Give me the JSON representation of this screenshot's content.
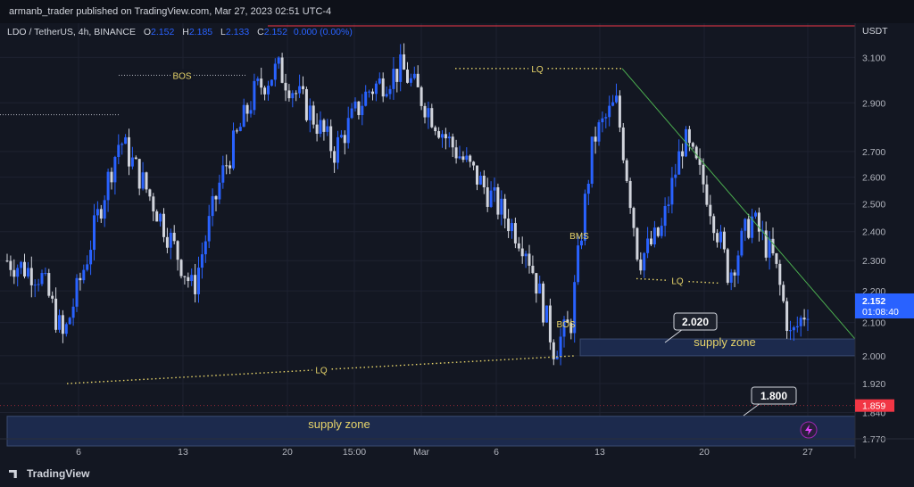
{
  "publisher_line": "armanb_trader published on TradingView.com, Mar 27, 2023 02:51 UTC-4",
  "legend": {
    "symbol": "LDO / TetherUS, 4h, BINANCE",
    "o_label": "O",
    "o": "2.152",
    "h_label": "H",
    "h": "2.185",
    "l_label": "L",
    "l": "2.133",
    "c_label": "C",
    "c": "2.152",
    "change": "0.000 (0.00%)"
  },
  "brand": "TradingView",
  "colors": {
    "up": "#2962ff",
    "down": "#d1d4dc",
    "background": "#131722",
    "zone": "#1c2a4d",
    "annotation": "#e8d56a",
    "trendline": "#4caf50",
    "price_badge": "#2962ff",
    "red_badge": "#f23645"
  },
  "chart_data": {
    "type": "candlestick",
    "currency_label": "USDT",
    "x_tick_labels": [
      "6",
      "13",
      "20",
      "15:00",
      "Mar",
      "6",
      "13",
      "20",
      "27"
    ],
    "y_tick_labels": [
      "3.100",
      "2.900",
      "2.700",
      "2.600",
      "2.500",
      "2.400",
      "2.300",
      "2.200",
      "2.100",
      "2.000",
      "1.920",
      "1.840",
      "1.770"
    ],
    "y_scale": "log",
    "ylim": [
      1.72,
      3.26
    ],
    "grid": true,
    "last_price": "2.152",
    "countdown": "01:08:40",
    "marker_price": "1.859",
    "close_path": [
      {
        "t": 0,
        "p": 2.3
      },
      {
        "t": 6,
        "p": 2.25
      },
      {
        "t": 10,
        "p": 2.05
      },
      {
        "t": 14,
        "p": 2.3
      },
      {
        "t": 20,
        "p": 2.75
      },
      {
        "t": 26,
        "p": 2.5
      },
      {
        "t": 33,
        "p": 2.2
      },
      {
        "t": 38,
        "p": 2.6
      },
      {
        "t": 44,
        "p": 2.95
      },
      {
        "t": 48,
        "p": 3.05
      },
      {
        "t": 54,
        "p": 2.85
      },
      {
        "t": 58,
        "p": 2.7
      },
      {
        "t": 64,
        "p": 2.95
      },
      {
        "t": 70,
        "p": 3.05
      },
      {
        "t": 74,
        "p": 2.9
      },
      {
        "t": 78,
        "p": 2.75
      },
      {
        "t": 85,
        "p": 2.55
      },
      {
        "t": 92,
        "p": 2.35
      },
      {
        "t": 97,
        "p": 2.02
      },
      {
        "t": 100,
        "p": 2.1
      },
      {
        "t": 104,
        "p": 2.75
      },
      {
        "t": 108,
        "p": 2.9
      },
      {
        "t": 112,
        "p": 2.3
      },
      {
        "t": 116,
        "p": 2.4
      },
      {
        "t": 120,
        "p": 2.75
      },
      {
        "t": 124,
        "p": 2.55
      },
      {
        "t": 128,
        "p": 2.25
      },
      {
        "t": 132,
        "p": 2.45
      },
      {
        "t": 136,
        "p": 2.3
      },
      {
        "t": 139,
        "p": 2.05
      },
      {
        "t": 142,
        "p": 2.15
      }
    ],
    "annotations": {
      "bos_top": "BOS",
      "bos_bottom": "BOS",
      "bms": "BMS",
      "lq_top": "LQ",
      "lq_mid": "LQ",
      "lq_bottom": "LQ",
      "supply_zone_upper": "supply zone",
      "supply_zone_lower": "supply zone",
      "callout_upper": "2.020",
      "callout_lower": "1.800"
    },
    "levels": {
      "bos_level": 3.02,
      "lq_top_level": 3.05,
      "upper_zone": [
        2.0,
        2.05
      ],
      "lower_zone": [
        1.72,
        1.83
      ],
      "bottom_lq_from": 1.92,
      "bottom_lq_to": 2.0,
      "lq_mid_level": 2.24,
      "left_dotted_level": 2.85
    }
  }
}
